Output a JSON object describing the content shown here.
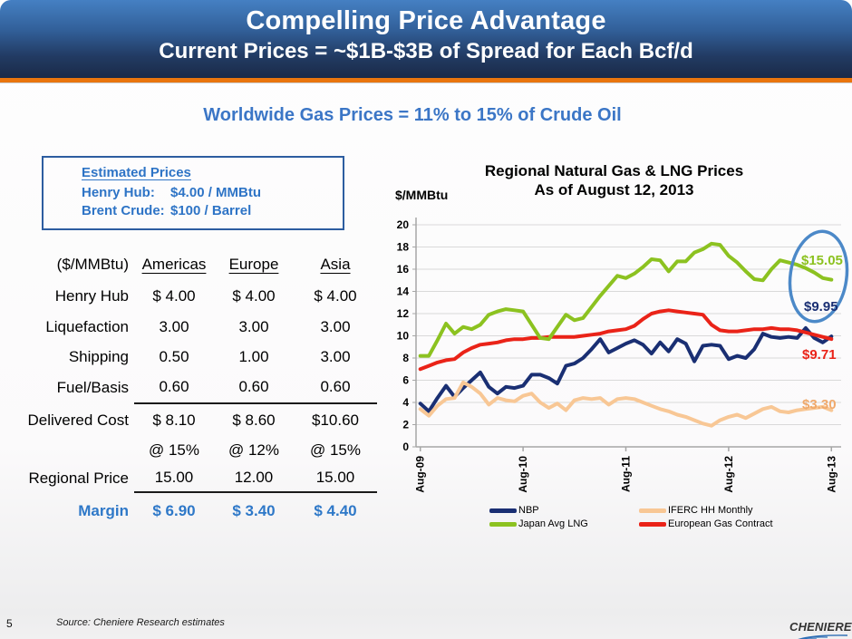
{
  "header": {
    "title": "Compelling Price Advantage",
    "subtitle": "Current Prices = ~$1B-$3B of Spread for Each Bcf/d"
  },
  "heading": "Worldwide Gas Prices = 11% to 15% of Crude Oil",
  "estimated_prices": {
    "title": "Estimated Prices",
    "rows": [
      {
        "label": "Henry Hub:",
        "value": "$4.00 / MMBtu"
      },
      {
        "label": "Brent Crude:",
        "value": "$100 / Barrel"
      }
    ]
  },
  "cost_table": {
    "unit_label": "($/MMBtu)",
    "columns": [
      "Americas",
      "Europe",
      "Asia"
    ],
    "rows": [
      {
        "label": "Henry Hub",
        "values": [
          "$ 4.00",
          "$ 4.00",
          "$ 4.00"
        ]
      },
      {
        "label": "Liquefaction",
        "values": [
          "3.00",
          "3.00",
          "3.00"
        ]
      },
      {
        "label": "Shipping",
        "values": [
          "0.50",
          "1.00",
          "3.00"
        ]
      },
      {
        "label": "Fuel/Basis",
        "values": [
          "0.60",
          "0.60",
          "0.60"
        ]
      },
      {
        "label": "Delivered Cost",
        "values": [
          "$ 8.10",
          "$ 8.60",
          "$10.60"
        ]
      },
      {
        "label": "Regional Price",
        "pre": [
          "@ 15%",
          "@ 12%",
          "@ 15%"
        ],
        "values": [
          "15.00",
          "12.00",
          "15.00"
        ]
      },
      {
        "label": "Margin",
        "values": [
          "$ 6.90",
          "$ 3.40",
          "$ 4.40"
        ]
      }
    ]
  },
  "chart_data": {
    "type": "line",
    "title": "Regional Natural Gas & LNG Prices",
    "subtitle": "As of August 12, 2013",
    "ylabel": "$/MMBtu",
    "ylim": [
      0,
      20
    ],
    "yticks": [
      0,
      2,
      4,
      6,
      8,
      10,
      12,
      14,
      16,
      18,
      20
    ],
    "x_ticks": [
      "Aug-09",
      "Aug-10",
      "Aug-11",
      "Aug-12",
      "Aug-13"
    ],
    "x_unit": "monthly",
    "n_points": 49,
    "grid": true,
    "legend_position": "bottom",
    "draw_order": [
      0,
      1,
      3,
      2
    ],
    "ellipse_color": "#4c89c8",
    "series": [
      {
        "name": "NBP",
        "color": "#1a2f73",
        "end_label": "$9.95",
        "values": [
          3.9,
          3.2,
          4.4,
          5.5,
          4.5,
          5.3,
          6.0,
          6.7,
          5.4,
          4.8,
          5.4,
          5.3,
          5.5,
          6.5,
          6.5,
          6.2,
          5.7,
          7.3,
          7.5,
          8.0,
          8.8,
          9.7,
          8.5,
          8.9,
          9.3,
          9.6,
          9.2,
          8.4,
          9.4,
          8.6,
          9.7,
          9.3,
          7.7,
          9.1,
          9.2,
          9.1,
          7.9,
          8.2,
          8.0,
          8.8,
          10.2,
          9.9,
          9.8,
          9.9,
          9.8,
          10.7,
          9.8,
          9.4,
          9.95
        ]
      },
      {
        "name": "IFERC HH Monthly",
        "color": "#f8c795",
        "label_color": "#f0a96b",
        "end_label": "$3.30",
        "values": [
          3.4,
          2.8,
          3.7,
          4.3,
          4.4,
          5.8,
          5.4,
          4.8,
          3.8,
          4.4,
          4.2,
          4.1,
          4.6,
          4.8,
          4.0,
          3.5,
          3.9,
          3.3,
          4.2,
          4.4,
          4.3,
          4.4,
          3.8,
          4.3,
          4.4,
          4.3,
          4.0,
          3.7,
          3.4,
          3.2,
          2.9,
          2.7,
          2.4,
          2.1,
          1.9,
          2.4,
          2.7,
          2.9,
          2.6,
          3.0,
          3.4,
          3.6,
          3.2,
          3.1,
          3.3,
          3.4,
          3.5,
          3.6,
          3.3
        ]
      },
      {
        "name": "Japan Avg LNG",
        "color": "#8cc220",
        "end_label": "$15.05",
        "values": [
          8.2,
          8.2,
          9.6,
          11.1,
          10.2,
          10.8,
          10.6,
          11.0,
          11.9,
          12.2,
          12.4,
          12.3,
          12.2,
          11.0,
          9.8,
          9.7,
          10.8,
          11.9,
          11.4,
          11.6,
          12.6,
          13.6,
          14.5,
          15.4,
          15.2,
          15.6,
          16.2,
          16.9,
          16.8,
          15.8,
          16.7,
          16.7,
          17.5,
          17.8,
          18.3,
          18.2,
          17.2,
          16.6,
          15.8,
          15.1,
          15.0,
          16.0,
          16.8,
          16.6,
          16.4,
          16.1,
          15.7,
          15.2,
          15.05
        ]
      },
      {
        "name": "European Gas Contract",
        "color": "#ea2318",
        "end_label": "$9.71",
        "values": [
          7.0,
          7.3,
          7.6,
          7.8,
          7.9,
          8.5,
          8.9,
          9.2,
          9.3,
          9.4,
          9.6,
          9.7,
          9.7,
          9.8,
          9.8,
          9.9,
          9.9,
          9.9,
          9.9,
          10.0,
          10.1,
          10.2,
          10.4,
          10.5,
          10.6,
          10.9,
          11.5,
          12.0,
          12.2,
          12.3,
          12.2,
          12.1,
          12.0,
          11.9,
          11.0,
          10.5,
          10.4,
          10.4,
          10.5,
          10.6,
          10.6,
          10.7,
          10.6,
          10.6,
          10.5,
          10.3,
          10.1,
          9.9,
          9.71
        ]
      }
    ]
  },
  "footer": {
    "page_number": "5",
    "source": "Source: Cheniere Research estimates",
    "logo_text": "CHENIERE"
  }
}
